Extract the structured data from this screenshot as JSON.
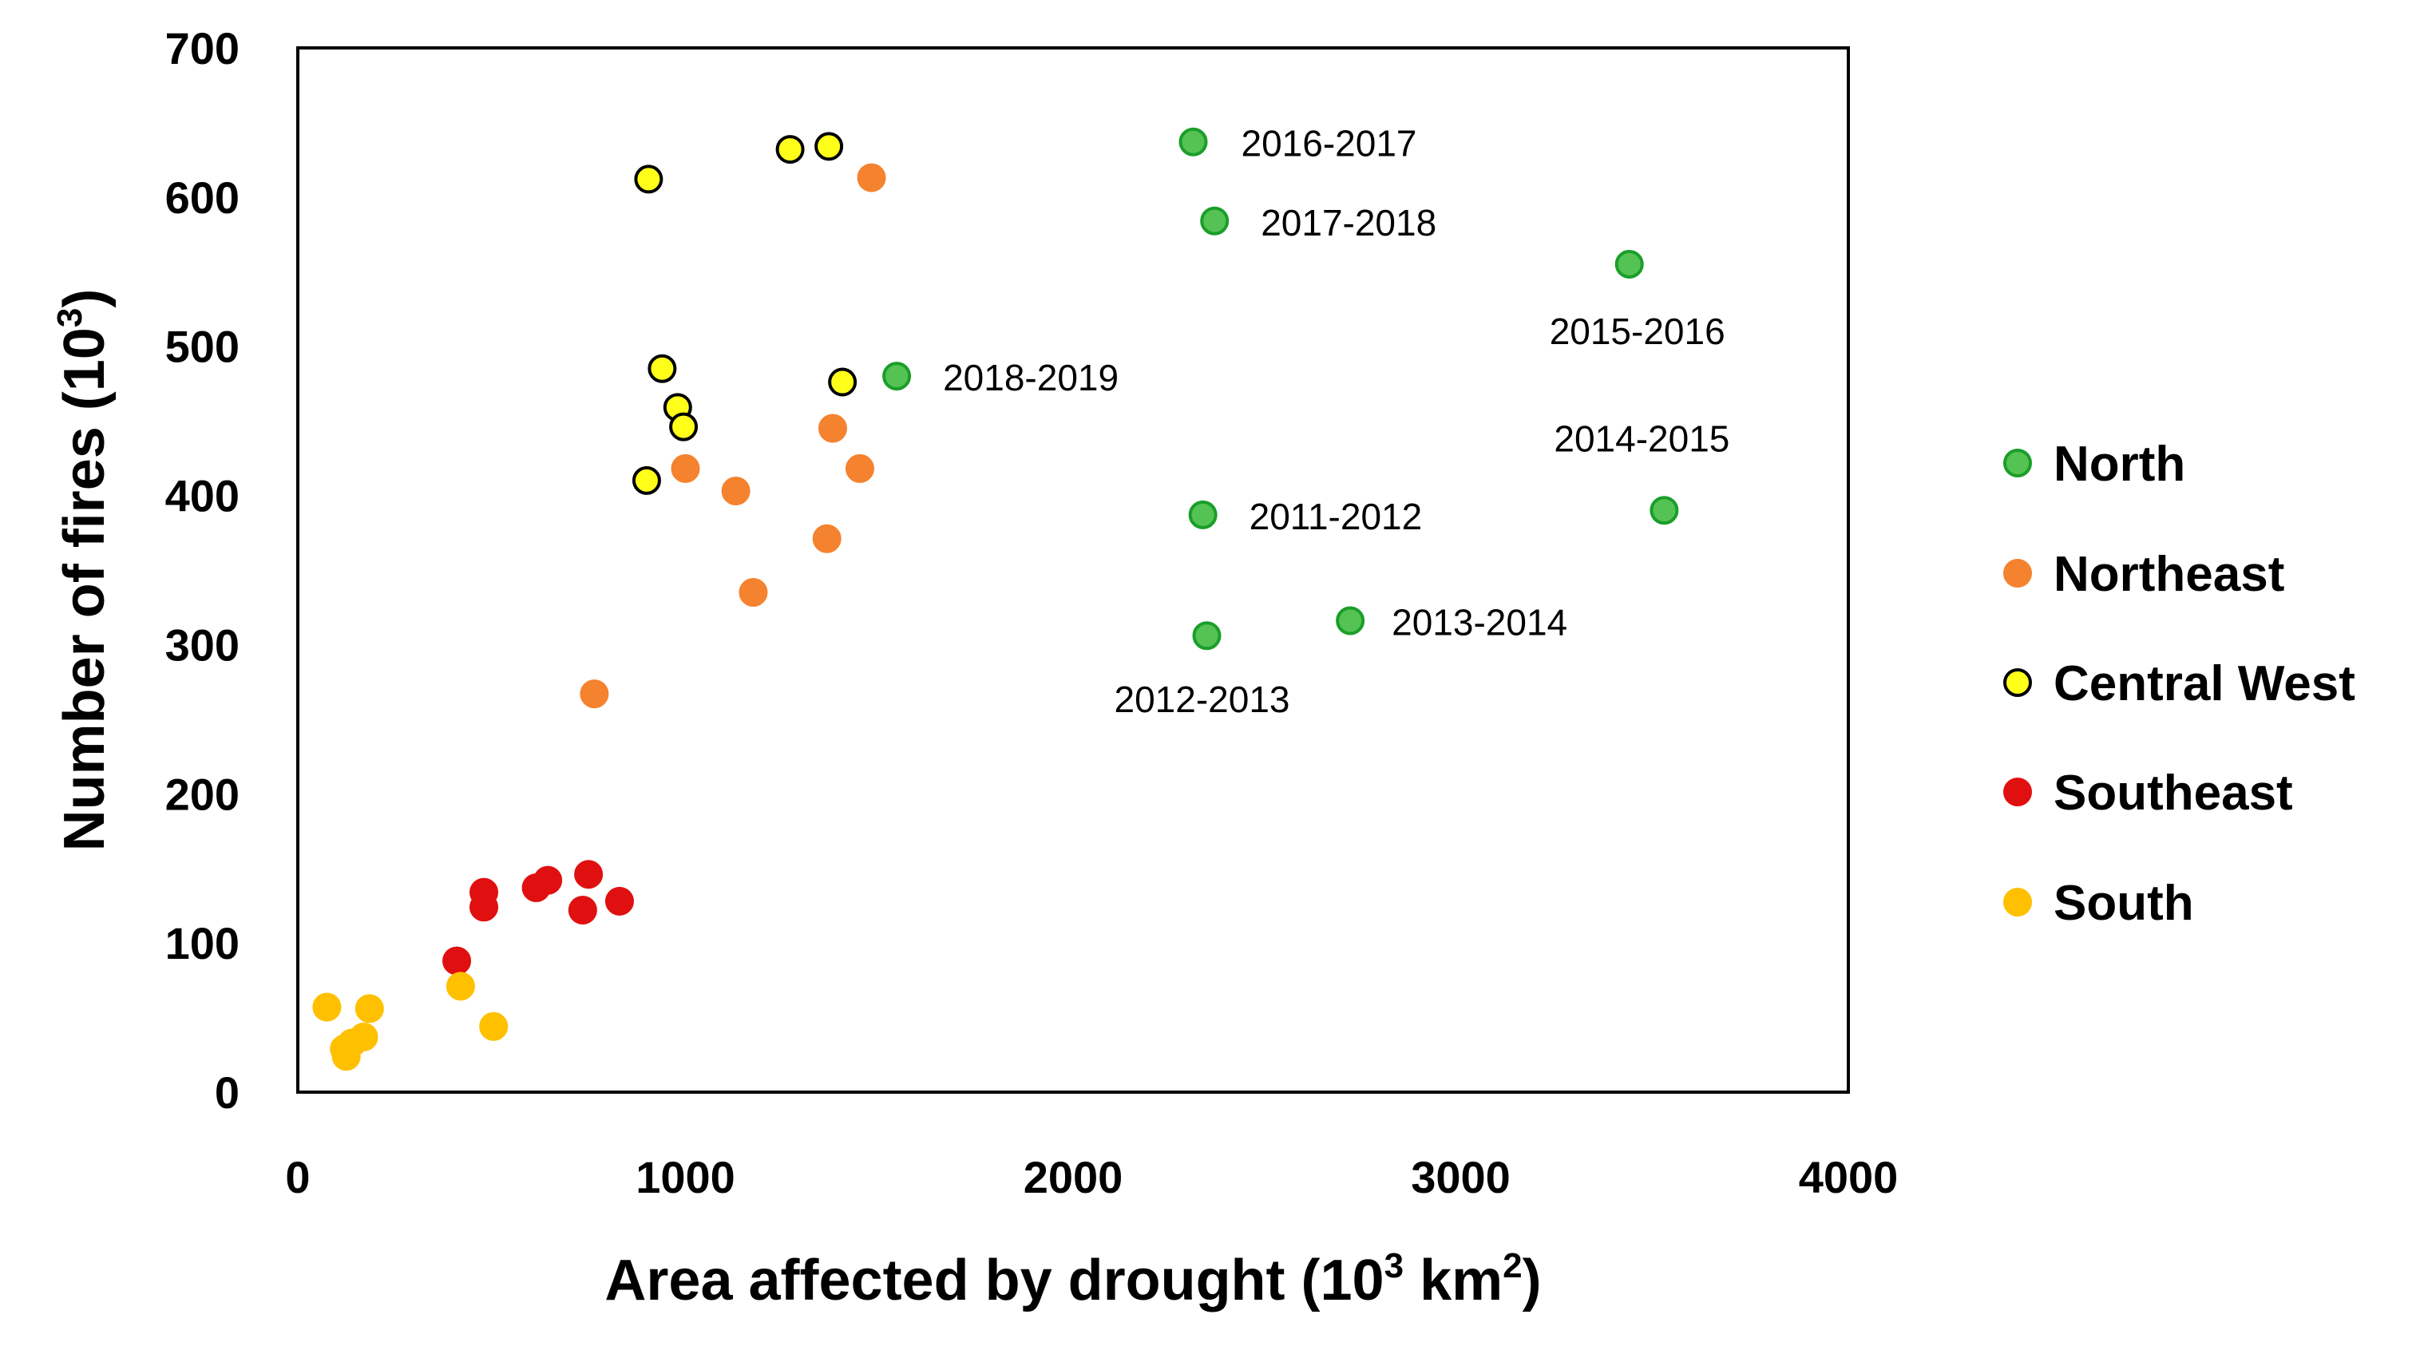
{
  "chart_data": {
    "type": "scatter",
    "title": "",
    "xlabel": "Area affected by drought (10",
    "xlabel_sup": "3",
    "xlabel_mid": " km",
    "xlabel_sup2": "2",
    "xlabel_end": ")",
    "ylabel": "Number of fires (10",
    "ylabel_sup": "3",
    "ylabel_end": ")",
    "xlim": [
      0,
      4000
    ],
    "ylim": [
      0,
      700
    ],
    "xticks": [
      0,
      1000,
      2000,
      3000,
      4000
    ],
    "yticks": [
      0,
      100,
      200,
      300,
      400,
      500,
      600,
      700
    ],
    "grid": false,
    "legend_position": "right",
    "series": [
      {
        "name": "North",
        "fill": "#55c254",
        "stroke": "#1a9e2a",
        "points": [
          {
            "x": 2310,
            "y": 637,
            "label": "2016-2017"
          },
          {
            "x": 2365,
            "y": 584,
            "label": "2017-2018"
          },
          {
            "x": 3435,
            "y": 555,
            "label": "2015-2016"
          },
          {
            "x": 1545,
            "y": 480,
            "label": "2018-2019"
          },
          {
            "x": 3525,
            "y": 390,
            "label": "2014-2015"
          },
          {
            "x": 2335,
            "y": 387,
            "label": "2011-2012"
          },
          {
            "x": 2345,
            "y": 306,
            "label": "2012-2013"
          },
          {
            "x": 2715,
            "y": 316,
            "label": "2013-2014"
          }
        ]
      },
      {
        "name": "Northeast",
        "fill": "#f5822f",
        "stroke": "#f5822f",
        "points": [
          {
            "x": 1480,
            "y": 613
          },
          {
            "x": 1380,
            "y": 445
          },
          {
            "x": 1450,
            "y": 418
          },
          {
            "x": 1000,
            "y": 418
          },
          {
            "x": 1130,
            "y": 403
          },
          {
            "x": 1365,
            "y": 371
          },
          {
            "x": 1175,
            "y": 335
          },
          {
            "x": 765,
            "y": 267
          }
        ]
      },
      {
        "name": "Central West",
        "fill": "#ffff1a",
        "stroke": "#000000",
        "points": [
          {
            "x": 905,
            "y": 612
          },
          {
            "x": 1270,
            "y": 632
          },
          {
            "x": 1370,
            "y": 634
          },
          {
            "x": 940,
            "y": 485
          },
          {
            "x": 980,
            "y": 459
          },
          {
            "x": 995,
            "y": 446
          },
          {
            "x": 1405,
            "y": 476
          },
          {
            "x": 900,
            "y": 410
          }
        ]
      },
      {
        "name": "Southeast",
        "fill": "#e01010",
        "stroke": "#e01010",
        "points": [
          {
            "x": 480,
            "y": 134
          },
          {
            "x": 480,
            "y": 124
          },
          {
            "x": 615,
            "y": 137
          },
          {
            "x": 645,
            "y": 142
          },
          {
            "x": 750,
            "y": 146
          },
          {
            "x": 735,
            "y": 122
          },
          {
            "x": 830,
            "y": 128
          },
          {
            "x": 410,
            "y": 88
          }
        ]
      },
      {
        "name": "South",
        "fill": "#ffc000",
        "stroke": "#ffc000",
        "points": [
          {
            "x": 75,
            "y": 57
          },
          {
            "x": 185,
            "y": 56
          },
          {
            "x": 420,
            "y": 71
          },
          {
            "x": 505,
            "y": 44
          },
          {
            "x": 170,
            "y": 37
          },
          {
            "x": 140,
            "y": 33
          },
          {
            "x": 120,
            "y": 29
          },
          {
            "x": 125,
            "y": 24
          }
        ]
      }
    ]
  }
}
